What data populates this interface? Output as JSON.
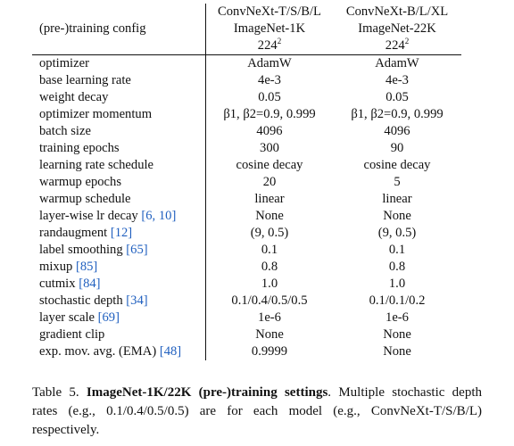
{
  "table": {
    "header": {
      "config_label": "(pre-)training config",
      "col1": {
        "line1": "ConvNeXt-T/S/B/L",
        "line2": "ImageNet-1K",
        "res": "224",
        "res_exp": "2"
      },
      "col2": {
        "line1": "ConvNeXt-B/L/XL",
        "line2": "ImageNet-22K",
        "res": "224",
        "res_exp": "2"
      }
    },
    "rows": [
      {
        "label": "optimizer",
        "cite": "",
        "v1": "AdamW",
        "v2": "AdamW"
      },
      {
        "label": "base learning rate",
        "cite": "",
        "v1": "4e-3",
        "v2": "4e-3"
      },
      {
        "label": "weight decay",
        "cite": "",
        "v1": "0.05",
        "v2": "0.05"
      },
      {
        "label": "optimizer momentum",
        "cite": "",
        "v1": "β1, β2=0.9, 0.999",
        "v2": "β1, β2=0.9, 0.999"
      },
      {
        "label": "batch size",
        "cite": "",
        "v1": "4096",
        "v2": "4096"
      },
      {
        "label": "training epochs",
        "cite": "",
        "v1": "300",
        "v2": "90"
      },
      {
        "label": "learning rate schedule",
        "cite": "",
        "v1": "cosine decay",
        "v2": "cosine decay"
      },
      {
        "label": "warmup epochs",
        "cite": "",
        "v1": "20",
        "v2": "5"
      },
      {
        "label": "warmup schedule",
        "cite": "",
        "v1": "linear",
        "v2": "linear"
      },
      {
        "label": "layer-wise lr decay",
        "cite": "[6, 10]",
        "v1": "None",
        "v2": "None"
      },
      {
        "label": "randaugment",
        "cite": "[12]",
        "v1": "(9, 0.5)",
        "v2": "(9, 0.5)"
      },
      {
        "label": "label smoothing",
        "cite": "[65]",
        "v1": "0.1",
        "v2": "0.1"
      },
      {
        "label": "mixup",
        "cite": "[85]",
        "v1": "0.8",
        "v2": "0.8"
      },
      {
        "label": "cutmix",
        "cite": "[84]",
        "v1": "1.0",
        "v2": "1.0"
      },
      {
        "label": "stochastic depth",
        "cite": "[34]",
        "v1": "0.1/0.4/0.5/0.5",
        "v2": "0.1/0.1/0.2"
      },
      {
        "label": "layer scale",
        "cite": "[69]",
        "v1": "1e-6",
        "v2": "1e-6"
      },
      {
        "label": "gradient clip",
        "cite": "",
        "v1": "None",
        "v2": "None"
      },
      {
        "label": "exp. mov. avg. (EMA)",
        "cite": "[48]",
        "v1": "0.9999",
        "v2": "None"
      }
    ]
  },
  "caption": {
    "prefix": "Table 5.",
    "bold": "ImageNet-1K/22K (pre-)training settings",
    "rest": ". Multiple stochastic depth rates (e.g., 0.1/0.4/0.5/0.5) are for each model (e.g., ConvNeXt-T/S/B/L) respectively."
  }
}
